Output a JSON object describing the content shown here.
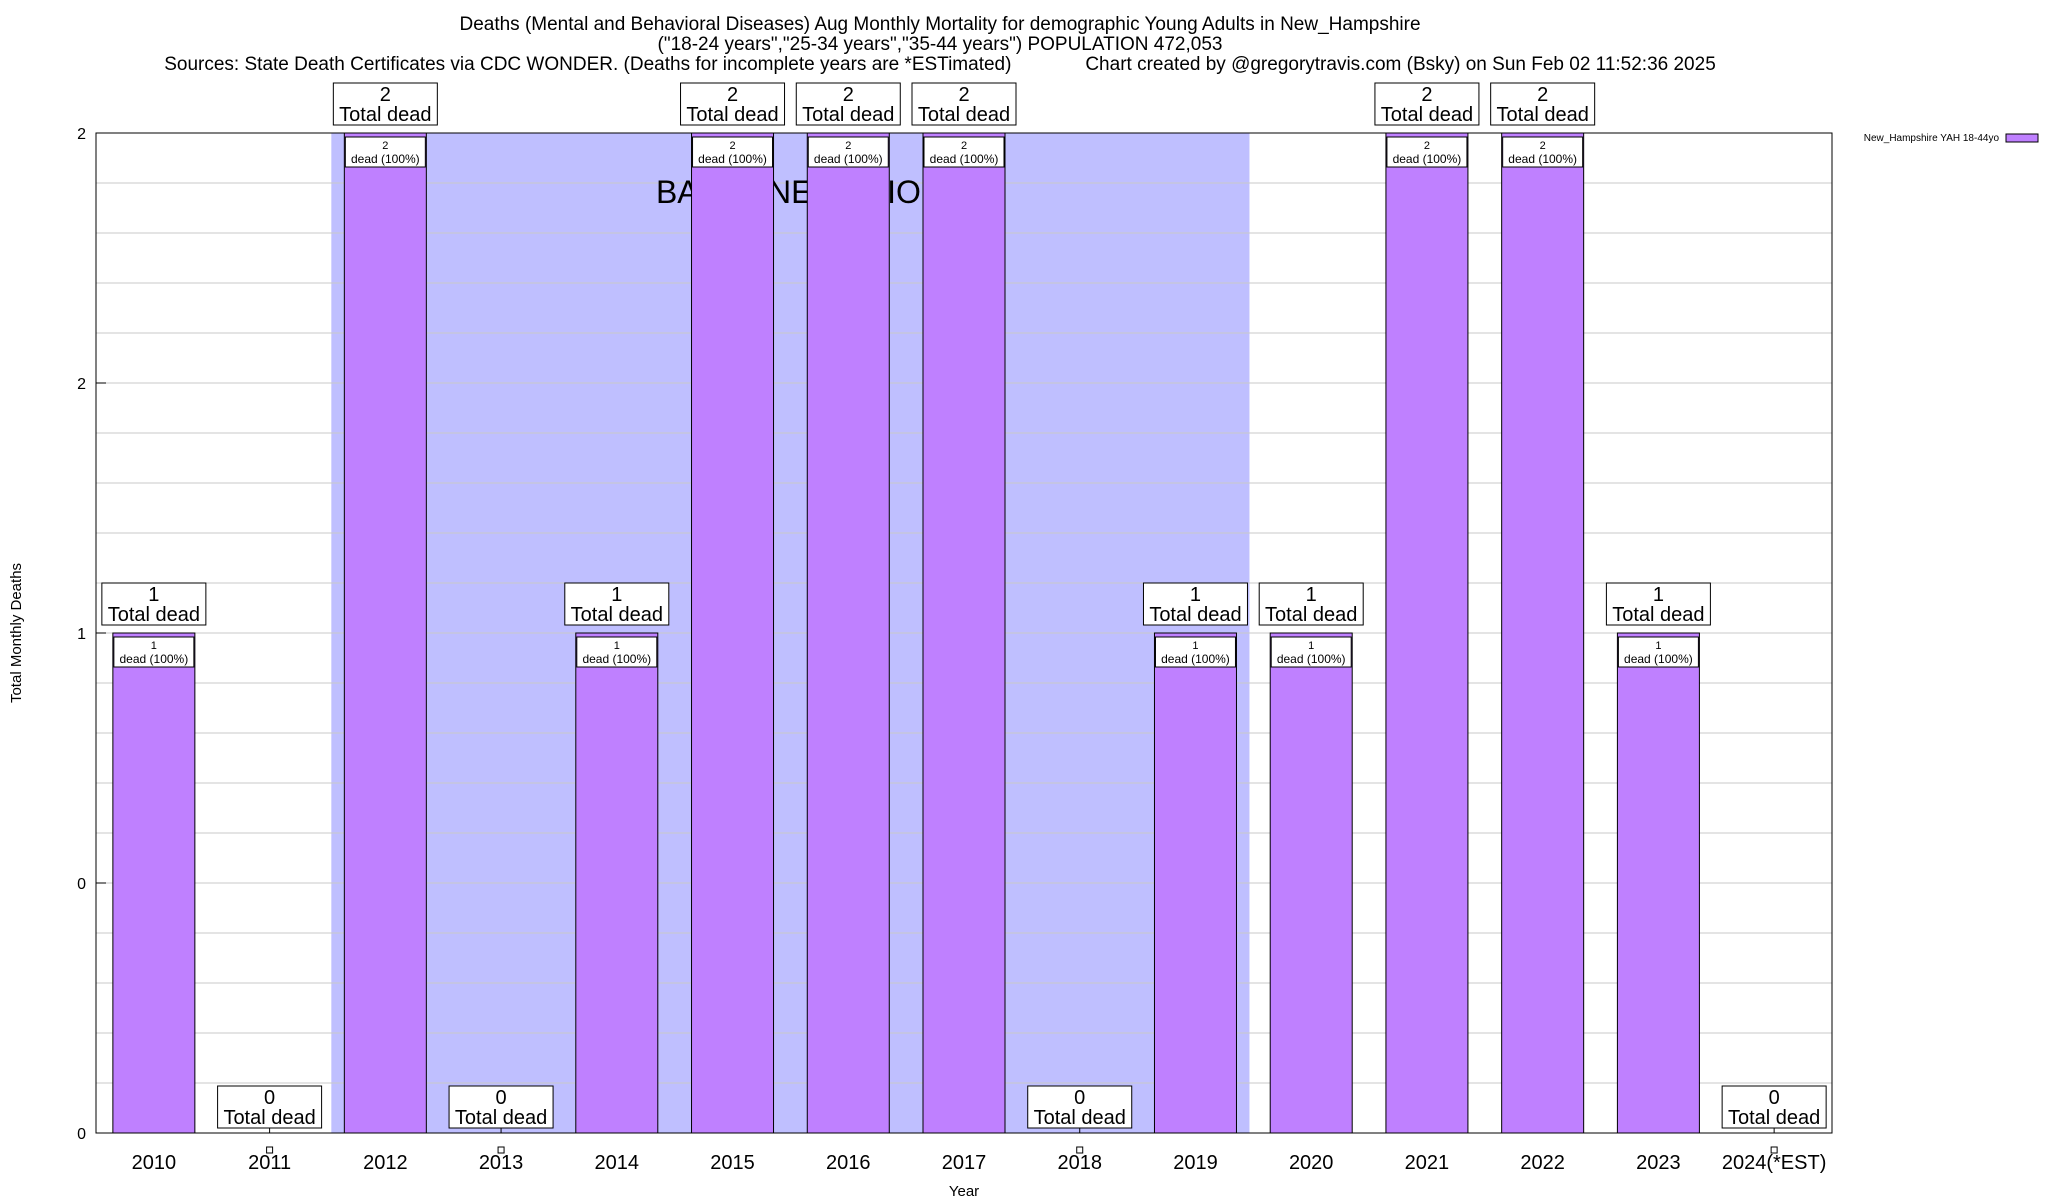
{
  "chart_data": {
    "type": "bar",
    "title": "Deaths (Mental and Behavioral Diseases) Aug Monthly Mortality for demographic Young Adults in New_Hampshire",
    "subtitle": "(\"18-24 years\",\"25-34 years\",\"35-44 years\") POPULATION 472,053",
    "source_line": "Sources: State Death Certificates via CDC WONDER. (Deaths for incomplete years are *ESTimated)              Chart created by @gregorytravis.com (Bsky) on Sun Feb 02 11:52:36 2025",
    "xlabel": "Year",
    "ylabel": "Total Monthly Deaths",
    "categories": [
      "2010",
      "2011",
      "2012",
      "2013",
      "2014",
      "2015",
      "2016",
      "2017",
      "2018",
      "2019",
      "2020",
      "2021",
      "2022",
      "2023",
      "2024(*EST)"
    ],
    "series": [
      {
        "name": "New_Hampshire YAH 18-44yo",
        "values": [
          1,
          0,
          2,
          0,
          1,
          2,
          2,
          2,
          0,
          1,
          1,
          2,
          2,
          1,
          0
        ]
      }
    ],
    "total_labels": [
      "1",
      "0",
      "2",
      "0",
      "1",
      "2",
      "2",
      "2",
      "0",
      "1",
      "1",
      "2",
      "2",
      "1",
      "0"
    ],
    "total_suffix": "Total dead",
    "inner_labels": [
      "1\ndead (100%)",
      "",
      "2\ndead (100%)",
      "",
      "1\ndead (100%)",
      "2\ndead (100%)",
      "2\ndead (100%)",
      "2\ndead (100%)",
      "",
      "1\ndead (100%)",
      "1\ndead (100%)",
      "2\ndead (100%)",
      "2\ndead (100%)",
      "1\ndead (100%)",
      ""
    ],
    "ylim": [
      0,
      2
    ],
    "y_tick_labels": [
      "0",
      "0",
      "1",
      "2",
      "2"
    ],
    "baseline_annotation": "BASELINE PERIOD",
    "baseline_range": [
      "2012",
      "2019"
    ],
    "grid": true,
    "legend_position": "top-right",
    "colors": {
      "bar": "#bf80ff",
      "baseline": "#bfbfff",
      "grid": "#c8c8c8"
    }
  }
}
